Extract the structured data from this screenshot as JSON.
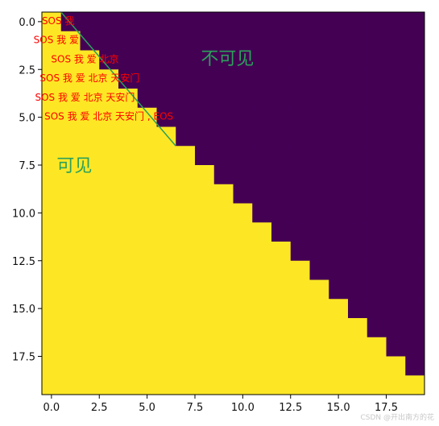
{
  "chart_data": {
    "type": "heatmap",
    "rows": 20,
    "cols": 20,
    "rule": "cell (row, col) is visible when col <= row",
    "x_extent": [
      -0.5,
      19.5
    ],
    "y_extent": [
      19.5,
      -0.5
    ],
    "x_ticks": [
      0.0,
      2.5,
      5.0,
      7.5,
      10.0,
      12.5,
      15.0,
      17.5
    ],
    "x_tick_labels": [
      "0.0",
      "2.5",
      "5.0",
      "7.5",
      "10.0",
      "12.5",
      "15.0",
      "17.5"
    ],
    "y_ticks": [
      0.0,
      2.5,
      5.0,
      7.5,
      10.0,
      12.5,
      15.0,
      17.5
    ],
    "y_tick_labels": [
      "0.0",
      "2.5",
      "5.0",
      "7.5",
      "10.0",
      "12.5",
      "15.0",
      "17.5"
    ],
    "colors": {
      "visible": "#fde725",
      "masked": "#440154",
      "annotation": "#2ca05a",
      "label": "#ff0000"
    },
    "colormap": "viridis",
    "grid": false,
    "diagonal_line": {
      "from": [
        0.5,
        -0.5
      ],
      "to": [
        6.5,
        6.5
      ]
    },
    "row_annotations": [
      {
        "text": "SOS 我",
        "x": 0.35,
        "y": -0.02
      },
      {
        "text": "SOS 我  爱",
        "x": 0.25,
        "y": 0.98
      },
      {
        "text": "SOS 我  爱  北京",
        "x": 1.75,
        "y": 1.98
      },
      {
        "text": "SOS 我  爱  北京  天安门",
        "x": 2.0,
        "y": 2.98
      },
      {
        "text": "SOS 我  爱  北京  天安门",
        "x": 1.75,
        "y": 3.98
      },
      {
        "text": "SOS 我  爱  北京  天安门  , EOS",
        "x": 3.0,
        "y": 4.98
      }
    ],
    "region_labels": [
      {
        "text": "不可见",
        "x": 9.2,
        "y": 1.98
      },
      {
        "text": "可见",
        "x": 1.2,
        "y": 7.58
      }
    ]
  },
  "watermark": "CSDN @开出南方的花"
}
